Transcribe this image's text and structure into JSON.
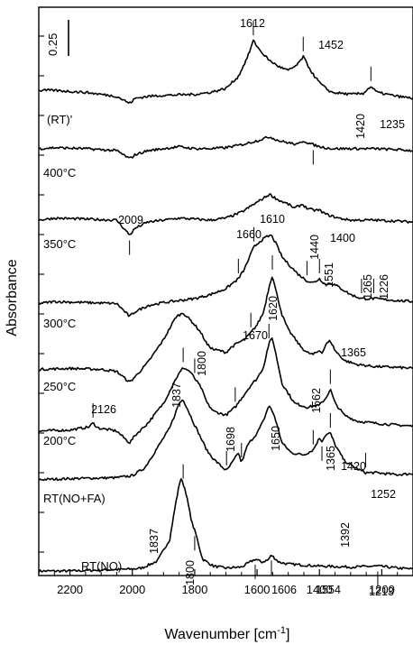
{
  "chart_data": {
    "type": "line",
    "xlabel": "Wavenumber [cm",
    "xlabel_sup": "-1",
    "xlabel_end": "]",
    "ylabel": "Absorbance",
    "xlim": [
      2300,
      1100
    ],
    "x_reversed": true,
    "xticks": [
      2200,
      2000,
      1800,
      1600,
      1400,
      1200
    ],
    "scale_bar_label": "0.25",
    "series": [
      {
        "name": "RT(NO)",
        "points": [
          [
            2300,
            0
          ],
          [
            2200,
            0
          ],
          [
            2000,
            0.02
          ],
          [
            1970,
            0.03
          ],
          [
            1920,
            0.1
          ],
          [
            1880,
            0.32
          ],
          [
            1860,
            0.7
          ],
          [
            1845,
            0.94
          ],
          [
            1830,
            0.82
          ],
          [
            1810,
            0.5
          ],
          [
            1795,
            0.36
          ],
          [
            1775,
            0.12
          ],
          [
            1740,
            0.05
          ],
          [
            1700,
            0.03
          ],
          [
            1650,
            0.04
          ],
          [
            1606,
            0.12
          ],
          [
            1585,
            0.09
          ],
          [
            1565,
            0.11
          ],
          [
            1554,
            0.16
          ],
          [
            1530,
            0.09
          ],
          [
            1500,
            0.07
          ],
          [
            1450,
            0.06
          ],
          [
            1400,
            0.05
          ],
          [
            1300,
            0.04
          ],
          [
            1213,
            0.05
          ],
          [
            1150,
            0.03
          ],
          [
            1100,
            0.02
          ]
        ]
      },
      {
        "name": "RT(NO+FA)",
        "points": [
          [
            2300,
            0.03
          ],
          [
            2200,
            0.04
          ],
          [
            2050,
            0.05
          ],
          [
            2000,
            0.07
          ],
          [
            1960,
            0.15
          ],
          [
            1920,
            0.35
          ],
          [
            1880,
            0.55
          ],
          [
            1850,
            0.8
          ],
          [
            1837,
            0.84
          ],
          [
            1820,
            0.72
          ],
          [
            1800,
            0.58
          ],
          [
            1780,
            0.45
          ],
          [
            1760,
            0.32
          ],
          [
            1740,
            0.24
          ],
          [
            1720,
            0.18
          ],
          [
            1698,
            0.12
          ],
          [
            1680,
            0.2
          ],
          [
            1660,
            0.3
          ],
          [
            1650,
            0.2
          ],
          [
            1630,
            0.38
          ],
          [
            1600,
            0.5
          ],
          [
            1580,
            0.62
          ],
          [
            1562,
            0.78
          ],
          [
            1545,
            0.68
          ],
          [
            1520,
            0.4
          ],
          [
            1490,
            0.3
          ],
          [
            1450,
            0.28
          ],
          [
            1420,
            0.33
          ],
          [
            1400,
            0.45
          ],
          [
            1392,
            0.42
          ],
          [
            1380,
            0.48
          ],
          [
            1365,
            0.5
          ],
          [
            1350,
            0.38
          ],
          [
            1320,
            0.22
          ],
          [
            1280,
            0.14
          ],
          [
            1252,
            0.1
          ],
          [
            1220,
            0.1
          ],
          [
            1150,
            0.08
          ],
          [
            1100,
            0.09
          ]
        ]
      },
      {
        "name": "200°C",
        "points": [
          [
            2300,
            0.02
          ],
          [
            2200,
            0.03
          ],
          [
            2140,
            0.06
          ],
          [
            2126,
            0.1
          ],
          [
            2110,
            0.05
          ],
          [
            2050,
            0.02
          ],
          [
            2009,
            -0.1
          ],
          [
            1990,
            -0.02
          ],
          [
            1950,
            0.1
          ],
          [
            1900,
            0.3
          ],
          [
            1860,
            0.55
          ],
          [
            1837,
            0.66
          ],
          [
            1815,
            0.62
          ],
          [
            1800,
            0.55
          ],
          [
            1780,
            0.46
          ],
          [
            1760,
            0.3
          ],
          [
            1740,
            0.22
          ],
          [
            1720,
            0.2
          ],
          [
            1700,
            0.18
          ],
          [
            1670,
            0.26
          ],
          [
            1650,
            0.35
          ],
          [
            1620,
            0.48
          ],
          [
            1600,
            0.55
          ],
          [
            1580,
            0.66
          ],
          [
            1562,
            0.9
          ],
          [
            1551,
            0.96
          ],
          [
            1540,
            0.8
          ],
          [
            1520,
            0.5
          ],
          [
            1480,
            0.3
          ],
          [
            1440,
            0.26
          ],
          [
            1400,
            0.28
          ],
          [
            1380,
            0.35
          ],
          [
            1365,
            0.44
          ],
          [
            1350,
            0.3
          ],
          [
            1320,
            0.18
          ],
          [
            1280,
            0.12
          ],
          [
            1226,
            0.1
          ],
          [
            1150,
            0.08
          ],
          [
            1100,
            0.07
          ]
        ]
      },
      {
        "name": "250°C",
        "points": [
          [
            2300,
            0.05
          ],
          [
            2200,
            0.06
          ],
          [
            2100,
            0.05
          ],
          [
            2050,
            0.03
          ],
          [
            2009,
            -0.08
          ],
          [
            1990,
            -0.02
          ],
          [
            1950,
            0.12
          ],
          [
            1900,
            0.35
          ],
          [
            1860,
            0.58
          ],
          [
            1837,
            0.62
          ],
          [
            1815,
            0.55
          ],
          [
            1800,
            0.5
          ],
          [
            1780,
            0.42
          ],
          [
            1760,
            0.3
          ],
          [
            1740,
            0.25
          ],
          [
            1720,
            0.24
          ],
          [
            1700,
            0.22
          ],
          [
            1680,
            0.28
          ],
          [
            1660,
            0.32
          ],
          [
            1640,
            0.35
          ],
          [
            1620,
            0.42
          ],
          [
            1600,
            0.5
          ],
          [
            1580,
            0.62
          ],
          [
            1560,
            0.9
          ],
          [
            1551,
            1.0
          ],
          [
            1540,
            0.85
          ],
          [
            1520,
            0.6
          ],
          [
            1500,
            0.45
          ],
          [
            1460,
            0.28
          ],
          [
            1440,
            0.22
          ],
          [
            1420,
            0.2
          ],
          [
            1400,
            0.24
          ],
          [
            1390,
            0.22
          ],
          [
            1380,
            0.3
          ],
          [
            1365,
            0.34
          ],
          [
            1350,
            0.24
          ],
          [
            1320,
            0.14
          ],
          [
            1280,
            0.1
          ],
          [
            1226,
            0.08
          ],
          [
            1150,
            0.07
          ],
          [
            1100,
            0.06
          ]
        ]
      },
      {
        "name": "300°C",
        "points": [
          [
            2300,
            0.05
          ],
          [
            2250,
            0.07
          ],
          [
            2150,
            0.06
          ],
          [
            2050,
            0.05
          ],
          [
            2009,
            -0.08
          ],
          [
            1990,
            -0.03
          ],
          [
            1950,
            0.03
          ],
          [
            1900,
            0.06
          ],
          [
            1850,
            0.08
          ],
          [
            1800,
            0.1
          ],
          [
            1750,
            0.14
          ],
          [
            1700,
            0.2
          ],
          [
            1660,
            0.3
          ],
          [
            1640,
            0.4
          ],
          [
            1620,
            0.55
          ],
          [
            1610,
            0.62
          ],
          [
            1590,
            0.68
          ],
          [
            1570,
            0.72
          ],
          [
            1555,
            0.74
          ],
          [
            1540,
            0.66
          ],
          [
            1520,
            0.52
          ],
          [
            1500,
            0.45
          ],
          [
            1470,
            0.35
          ],
          [
            1440,
            0.28
          ],
          [
            1420,
            0.26
          ],
          [
            1400,
            0.3
          ],
          [
            1380,
            0.24
          ],
          [
            1365,
            0.26
          ],
          [
            1340,
            0.22
          ],
          [
            1300,
            0.14
          ],
          [
            1265,
            0.1
          ],
          [
            1240,
            0.1
          ],
          [
            1226,
            0.1
          ],
          [
            1150,
            0.08
          ],
          [
            1100,
            0.07
          ]
        ]
      },
      {
        "name": "350°C",
        "points": [
          [
            2300,
            0.1
          ],
          [
            2250,
            0.12
          ],
          [
            2150,
            0.11
          ],
          [
            2050,
            0.1
          ],
          [
            2009,
            -0.05
          ],
          [
            1990,
            0.02
          ],
          [
            1950,
            0.08
          ],
          [
            1900,
            0.1
          ],
          [
            1850,
            0.12
          ],
          [
            1800,
            0.11
          ],
          [
            1750,
            0.1
          ],
          [
            1700,
            0.12
          ],
          [
            1650,
            0.18
          ],
          [
            1620,
            0.24
          ],
          [
            1600,
            0.28
          ],
          [
            1560,
            0.36
          ],
          [
            1530,
            0.3
          ],
          [
            1500,
            0.26
          ],
          [
            1480,
            0.22
          ],
          [
            1455,
            0.26
          ],
          [
            1440,
            0.22
          ],
          [
            1420,
            0.2
          ],
          [
            1400,
            0.2
          ],
          [
            1380,
            0.16
          ],
          [
            1340,
            0.12
          ],
          [
            1300,
            0.1
          ],
          [
            1226,
            0.1
          ],
          [
            1150,
            0.09
          ],
          [
            1100,
            0.08
          ]
        ]
      },
      {
        "name": "400°C",
        "points": [
          [
            2300,
            0.12
          ],
          [
            2250,
            0.13
          ],
          [
            2150,
            0.12
          ],
          [
            2050,
            0.1
          ],
          [
            2009,
            0.02
          ],
          [
            1990,
            0.06
          ],
          [
            1950,
            0.1
          ],
          [
            1900,
            0.12
          ],
          [
            1850,
            0.14
          ],
          [
            1800,
            0.12
          ],
          [
            1750,
            0.12
          ],
          [
            1700,
            0.13
          ],
          [
            1650,
            0.16
          ],
          [
            1600,
            0.2
          ],
          [
            1560,
            0.24
          ],
          [
            1530,
            0.2
          ],
          [
            1500,
            0.18
          ],
          [
            1470,
            0.16
          ],
          [
            1452,
            0.2
          ],
          [
            1430,
            0.17
          ],
          [
            1400,
            0.14
          ],
          [
            1360,
            0.12
          ],
          [
            1300,
            0.12
          ],
          [
            1226,
            0.12
          ],
          [
            1150,
            0.11
          ],
          [
            1100,
            0.1
          ]
        ]
      },
      {
        "name": "(RT)'",
        "points": [
          [
            2300,
            0.18
          ],
          [
            2250,
            0.18
          ],
          [
            2150,
            0.16
          ],
          [
            2050,
            0.12
          ],
          [
            2009,
            0.05
          ],
          [
            1990,
            0.1
          ],
          [
            1950,
            0.12
          ],
          [
            1900,
            0.13
          ],
          [
            1800,
            0.14
          ],
          [
            1750,
            0.16
          ],
          [
            1700,
            0.2
          ],
          [
            1660,
            0.32
          ],
          [
            1630,
            0.52
          ],
          [
            1612,
            0.68
          ],
          [
            1590,
            0.58
          ],
          [
            1560,
            0.48
          ],
          [
            1530,
            0.42
          ],
          [
            1500,
            0.38
          ],
          [
            1470,
            0.44
          ],
          [
            1452,
            0.52
          ],
          [
            1435,
            0.42
          ],
          [
            1420,
            0.34
          ],
          [
            1400,
            0.26
          ],
          [
            1380,
            0.2
          ],
          [
            1360,
            0.16
          ],
          [
            1300,
            0.14
          ],
          [
            1260,
            0.15
          ],
          [
            1235,
            0.22
          ],
          [
            1215,
            0.16
          ],
          [
            1150,
            0.12
          ],
          [
            1100,
            0.1
          ]
        ]
      }
    ],
    "annotations": [
      {
        "text": "1612",
        "x": 1612,
        "trace": 7
      },
      {
        "text": "1452",
        "x": 1452,
        "trace": 7
      },
      {
        "text": "1420",
        "x": 1420,
        "trace": 6
      },
      {
        "text": "1235",
        "x": 1235,
        "trace": 7
      },
      {
        "text": "2009",
        "x": 2009,
        "trace": 5
      },
      {
        "text": "1610",
        "x": 1610,
        "trace": 4
      },
      {
        "text": "1660",
        "x": 1660,
        "trace": 4
      },
      {
        "text": "1440",
        "x": 1440,
        "trace": 4
      },
      {
        "text": "1400",
        "x": 1400,
        "trace": 4
      },
      {
        "text": "1265",
        "x": 1265,
        "trace": 4
      },
      {
        "text": "1226",
        "x": 1226,
        "trace": 4
      },
      {
        "text": "1551",
        "x": 1551,
        "trace": 3
      },
      {
        "text": "1620",
        "x": 1620,
        "trace": 3
      },
      {
        "text": "1670",
        "x": 1670,
        "trace": 2
      },
      {
        "text": "1837",
        "x": 1837,
        "trace": 2
      },
      {
        "text": "1800",
        "x": 1800,
        "trace": 2
      },
      {
        "text": "1365",
        "x": 1365,
        "trace": 2
      },
      {
        "text": "2126",
        "x": 2126,
        "trace": 2
      },
      {
        "text": "1562",
        "x": 1562,
        "trace": 2
      },
      {
        "text": "1698",
        "x": 1698,
        "trace": 1
      },
      {
        "text": "1650",
        "x": 1650,
        "trace": 1
      },
      {
        "text": "1420",
        "x": 1420,
        "trace": 1
      },
      {
        "text": "1365",
        "x": 1365,
        "trace": 1
      },
      {
        "text": "1392",
        "x": 1392,
        "trace": 1
      },
      {
        "text": "1252",
        "x": 1252,
        "trace": 1
      },
      {
        "text": "1837",
        "x": 1837,
        "trace": 0
      },
      {
        "text": "1800",
        "x": 1800,
        "trace": 0
      },
      {
        "text": "1606",
        "x": 1606,
        "trace": 0
      },
      {
        "text": "1554",
        "x": 1554,
        "trace": 0
      },
      {
        "text": "1213",
        "x": 1213,
        "trace": 0
      }
    ]
  }
}
